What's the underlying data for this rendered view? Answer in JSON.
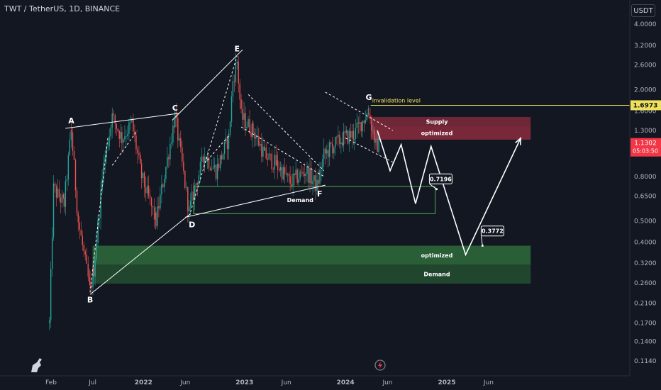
{
  "header": {
    "symbol_title": "TWT / TetherUS, 1D, BINANCE",
    "currency": "USDT"
  },
  "chart_data": {
    "type": "candlestick",
    "title": "TWT / TetherUS, 1D, BINANCE",
    "scale": "log",
    "ylim": [
      0.105,
      4.5
    ],
    "y_ticks": [
      "4.0000",
      "3.2000",
      "2.6000",
      "2.0000",
      "1.6000",
      "1.3000",
      "0.8000",
      "0.6500",
      "0.5000",
      "0.4000",
      "0.3200",
      "0.2600",
      "0.2100",
      "0.1700",
      "0.1400",
      "0.1140"
    ],
    "y_tick_values": [
      4.0,
      3.2,
      2.6,
      2.0,
      1.6,
      1.3,
      0.8,
      0.65,
      0.5,
      0.4,
      0.32,
      0.26,
      0.21,
      0.17,
      0.14,
      0.114
    ],
    "x_ticks": [
      "Feb",
      "Jul",
      "2022",
      "Jun",
      "2023",
      "Jun",
      "2024",
      "Jun",
      "2025",
      "Jun"
    ],
    "x_tick_dates": [
      "2021-02-01",
      "2021-07-01",
      "2022-01-01",
      "2022-06-01",
      "2023-01-01",
      "2023-06-01",
      "2024-01-01",
      "2024-06-01",
      "2025-01-01",
      "2025-06-01"
    ],
    "current_price": {
      "label": "1.1302",
      "value": 1.1302,
      "countdown": "05:03:50",
      "color": "#f23645"
    },
    "invalidation": {
      "label": "invalidation level",
      "price_label": "1.6973",
      "value": 1.6973,
      "color": "#f0e15b"
    },
    "price_swing": [
      [
        "2021-01-26",
        0.17
      ],
      [
        "2021-02-10",
        0.7
      ],
      [
        "2021-03-20",
        0.6
      ],
      [
        "2021-04-15",
        1.3
      ],
      [
        "2021-05-10",
        0.5
      ],
      [
        "2021-06-22",
        0.24
      ],
      [
        "2021-07-05",
        0.3
      ],
      [
        "2021-08-10",
        0.9
      ],
      [
        "2021-09-10",
        1.5
      ],
      [
        "2021-10-15",
        1.2
      ],
      [
        "2021-11-20",
        1.4
      ],
      [
        "2021-12-25",
        0.8
      ],
      [
        "2022-02-15",
        0.5
      ],
      [
        "2022-04-25",
        1.5
      ],
      [
        "2022-06-15",
        0.55
      ],
      [
        "2022-07-10",
        0.75
      ],
      [
        "2022-08-10",
        1.0
      ],
      [
        "2022-09-20",
        0.85
      ],
      [
        "2022-11-05",
        1.2
      ],
      [
        "2022-11-20",
        2.2
      ],
      [
        "2022-12-05",
        2.7
      ],
      [
        "2022-12-20",
        1.5
      ],
      [
        "2023-02-01",
        1.3
      ],
      [
        "2023-03-15",
        1.0
      ],
      [
        "2023-05-01",
        0.9
      ],
      [
        "2023-06-15",
        0.75
      ],
      [
        "2023-08-10",
        0.85
      ],
      [
        "2023-09-20",
        0.72
      ],
      [
        "2023-10-15",
        1.0
      ],
      [
        "2023-11-15",
        1.1
      ],
      [
        "2023-12-25",
        1.2
      ],
      [
        "2024-02-01",
        1.25
      ],
      [
        "2024-03-25",
        1.6
      ],
      [
        "2024-04-20",
        1.1
      ],
      [
        "2024-05-01",
        1.13
      ]
    ],
    "wave_points": [
      {
        "label": "A",
        "date": "2021-04-15",
        "value": 1.33
      },
      {
        "label": "B",
        "date": "2021-06-22",
        "value": 0.235
      },
      {
        "label": "C",
        "date": "2022-04-25",
        "value": 1.52
      },
      {
        "label": "D",
        "date": "2022-06-15",
        "value": 0.52
      },
      {
        "label": "E",
        "date": "2022-12-05",
        "value": 2.85
      },
      {
        "label": "F",
        "date": "2023-10-10",
        "value": 0.72
      },
      {
        "label": "G",
        "date": "2024-03-25",
        "value": 1.7
      }
    ],
    "zones": [
      {
        "label": "Supply",
        "date_from": "2024-04-01",
        "date_to": "2025-10-31",
        "hi": 1.5,
        "lo": 1.36,
        "fill": "#7f2a3a"
      },
      {
        "label": "optimized",
        "date_from": "2024-04-01",
        "date_to": "2025-10-31",
        "hi": 1.36,
        "lo": 1.18,
        "fill": "#8b2c3c"
      },
      {
        "label": "Demand",
        "date_from": "2022-07-01",
        "date_to": "2024-11-20",
        "hi": 0.72,
        "lo": 0.54,
        "fill": "none"
      },
      {
        "label": "optimized",
        "date_from": "2021-07-01",
        "date_to": "2025-10-31",
        "hi": 0.385,
        "lo": 0.315,
        "fill": "#2f6b3b"
      },
      {
        "label": "Demand",
        "date_from": "2021-07-01",
        "date_to": "2025-10-31",
        "hi": 0.315,
        "lo": 0.258,
        "fill": "#244f30"
      }
    ],
    "projection": [
      [
        "2024-04-25",
        1.3
      ],
      [
        "2024-06-10",
        0.85
      ],
      [
        "2024-07-20",
        1.12
      ],
      [
        "2024-09-10",
        0.6
      ],
      [
        "2024-11-05",
        1.1
      ],
      [
        "2025-03-10",
        0.35
      ],
      [
        "2025-09-25",
        1.2
      ]
    ],
    "targets": [
      {
        "label": "0.7196",
        "date": "2024-12-10",
        "value": 0.78,
        "arrow_date": "2024-11-25",
        "arrow_value": 0.7
      },
      {
        "label": "0.3772",
        "date": "2025-06-15",
        "value": 0.45,
        "arrow_date": "2025-05-10",
        "arrow_value": 0.385
      }
    ]
  }
}
